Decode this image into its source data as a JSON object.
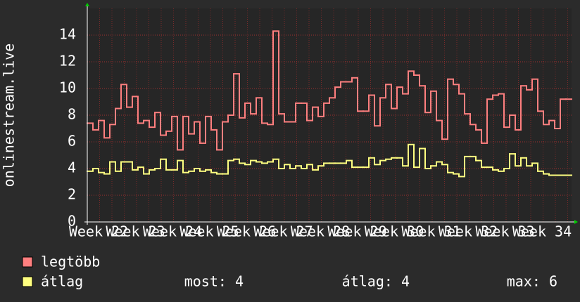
{
  "chart_data": {
    "type": "step",
    "ylabel": "onlinestream.live",
    "xticks": [
      "Week 22",
      "Week 23",
      "Week 24",
      "Week 25",
      "Week 26",
      "Week 27",
      "Week 28",
      "Week 29",
      "Week 30",
      "Week 31",
      "Week 32",
      "Week 33",
      "Week 34"
    ],
    "ylim": [
      0,
      16
    ],
    "yticks": [
      0,
      2,
      4,
      6,
      8,
      10,
      12,
      14
    ],
    "grid": true,
    "series": [
      {
        "name": "legtöbb",
        "color": "#ff7f7f",
        "values": [
          7.4,
          6.9,
          7.6,
          6.3,
          7.3,
          8.5,
          10.3,
          8.6,
          9.4,
          7.4,
          7.6,
          7.1,
          8.2,
          6.5,
          6.8,
          7.9,
          5.4,
          7.9,
          6.6,
          7.5,
          5.9,
          7.9,
          6.9,
          5.4,
          7.5,
          8.0,
          11.1,
          7.8,
          8.9,
          8.1,
          9.3,
          7.4,
          7.3,
          14.3,
          8.1,
          7.5,
          7.5,
          8.9,
          8.9,
          7.6,
          8.6,
          7.9,
          8.9,
          9.3,
          10.1,
          10.5,
          10.5,
          10.8,
          8.3,
          8.3,
          9.5,
          7.2,
          9.3,
          10.3,
          8.5,
          10.1,
          9.6,
          11.3,
          11.0,
          10.2,
          8.2,
          9.8,
          7.6,
          6.2,
          10.7,
          10.3,
          9.6,
          8.1,
          7.3,
          6.9,
          5.9,
          9.2,
          9.5,
          9.6,
          7.1,
          8.0,
          6.9,
          10.2,
          9.9,
          10.7,
          8.3,
          7.3,
          7.6,
          7.0,
          9.2,
          9.2
        ]
      },
      {
        "name": "átlag",
        "color": "#ffff80",
        "values": [
          3.8,
          4.0,
          3.7,
          3.6,
          4.5,
          3.8,
          4.5,
          4.5,
          3.9,
          4.1,
          3.6,
          3.9,
          4.0,
          4.7,
          3.9,
          3.9,
          4.6,
          3.7,
          3.8,
          4.0,
          3.8,
          3.9,
          3.7,
          3.6,
          3.6,
          4.6,
          4.7,
          4.4,
          4.3,
          4.6,
          4.5,
          4.4,
          4.5,
          4.7,
          4.0,
          4.3,
          4.0,
          4.2,
          4.0,
          4.3,
          3.9,
          4.2,
          4.4,
          4.4,
          4.4,
          4.4,
          4.6,
          4.1,
          4.1,
          4.1,
          4.8,
          4.3,
          4.6,
          4.7,
          4.8,
          4.8,
          4.2,
          5.8,
          4.1,
          5.5,
          4.0,
          4.2,
          4.5,
          4.3,
          3.7,
          3.6,
          3.4,
          4.9,
          4.9,
          4.6,
          4.1,
          4.1,
          3.9,
          3.8,
          4.0,
          5.1,
          4.2,
          4.8,
          4.2,
          4.4,
          3.8,
          3.6,
          3.5,
          3.5,
          3.5,
          3.5
        ]
      }
    ],
    "stats": [
      "most: 4",
      "átlag: 4",
      "max: 6"
    ]
  }
}
